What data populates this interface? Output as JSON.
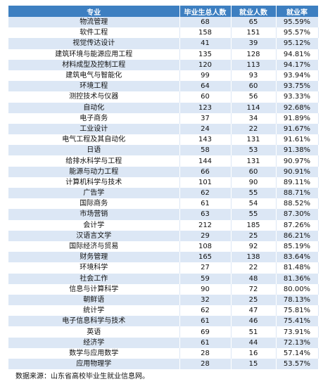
{
  "table": {
    "header": [
      "专业",
      "毕业生总人数",
      "就业人数",
      "就业率"
    ],
    "rows": [
      [
        "物流管理",
        68,
        65,
        "95.59%"
      ],
      [
        "软件工程",
        158,
        151,
        "95.57%"
      ],
      [
        "视觉传达设计",
        41,
        39,
        "95.12%"
      ],
      [
        "建筑环境与能源应用工程",
        135,
        128,
        "94.81%"
      ],
      [
        "材料成型及控制工程",
        120,
        113,
        "94.17%"
      ],
      [
        "建筑电气与智能化",
        99,
        93,
        "93.94%"
      ],
      [
        "环境工程",
        64,
        60,
        "93.75%"
      ],
      [
        "测控技术与仪器",
        60,
        56,
        "93.33%"
      ],
      [
        "自动化",
        123,
        114,
        "92.68%"
      ],
      [
        "电子商务",
        37,
        34,
        "91.89%"
      ],
      [
        "工业设计",
        24,
        22,
        "91.67%"
      ],
      [
        "电气工程及其自动化",
        143,
        131,
        "91.61%"
      ],
      [
        "日语",
        58,
        53,
        "91.38%"
      ],
      [
        "给排水科学与工程",
        144,
        131,
        "90.97%"
      ],
      [
        "能源与动力工程",
        66,
        60,
        "90.91%"
      ],
      [
        "计算机科学与技术",
        101,
        90,
        "89.11%"
      ],
      [
        "广告学",
        62,
        55,
        "88.71%"
      ],
      [
        "国际商务",
        61,
        54,
        "88.52%"
      ],
      [
        "市场营销",
        63,
        55,
        "87.30%"
      ],
      [
        "会计学",
        212,
        185,
        "87.26%"
      ],
      [
        "汉语言文学",
        29,
        25,
        "86.21%"
      ],
      [
        "国际经济与贸易",
        108,
        92,
        "85.19%"
      ],
      [
        "财务管理",
        165,
        138,
        "83.64%"
      ],
      [
        "环境科学",
        27,
        22,
        "81.48%"
      ],
      [
        "社会工作",
        59,
        48,
        "81.36%"
      ],
      [
        "信息与计算科学",
        90,
        72,
        "80.00%"
      ],
      [
        "朝鲜语",
        32,
        25,
        "78.13%"
      ],
      [
        "统计学",
        62,
        47,
        "75.81%"
      ],
      [
        "电子信息科学与技术",
        61,
        46,
        "75.41%"
      ],
      [
        "英语",
        69,
        51,
        "73.91%"
      ],
      [
        "经济学",
        61,
        44,
        "72.13%"
      ],
      [
        "数学与应用数学",
        28,
        16,
        "57.14%"
      ],
      [
        "应用物理学",
        28,
        15,
        "53.57%"
      ]
    ],
    "source": "数据来源：山东省高校毕业生就业信息网。"
  }
}
